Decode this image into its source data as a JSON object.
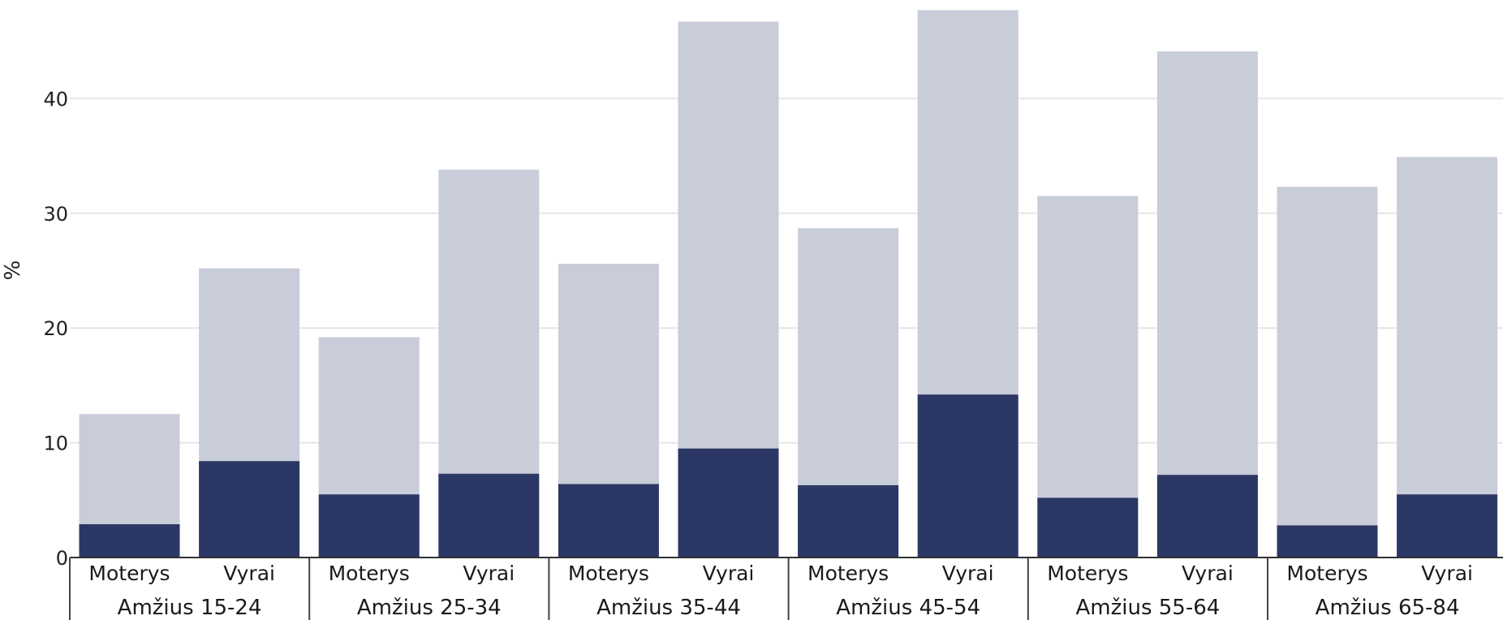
{
  "chart_data": {
    "type": "bar",
    "stacked": false,
    "ylabel": "%",
    "ylim": [
      0,
      48
    ],
    "yticks": [
      0,
      10,
      20,
      30,
      40
    ],
    "grid": true,
    "categories": [
      "Moterys",
      "Vyrai",
      "Moterys",
      "Vyrai",
      "Moterys",
      "Vyrai",
      "Moterys",
      "Vyrai",
      "Moterys",
      "Vyrai",
      "Moterys",
      "Vyrai"
    ],
    "groups": [
      "Amžius 15-24",
      "Amžius 25-34",
      "Amžius 35-44",
      "Amžius 45-54",
      "Amžius 55-64",
      "Amžius 65-84"
    ],
    "series": [
      {
        "color": "#c9ccd9",
        "values": [
          12.5,
          25.2,
          19.2,
          33.8,
          25.6,
          46.7,
          28.7,
          47.7,
          31.5,
          44.1,
          32.3,
          34.9
        ]
      },
      {
        "color": "#2b3764",
        "values": [
          2.9,
          8.4,
          5.5,
          7.3,
          6.4,
          9.5,
          6.3,
          14.2,
          5.2,
          7.2,
          2.8,
          5.5
        ]
      }
    ]
  }
}
